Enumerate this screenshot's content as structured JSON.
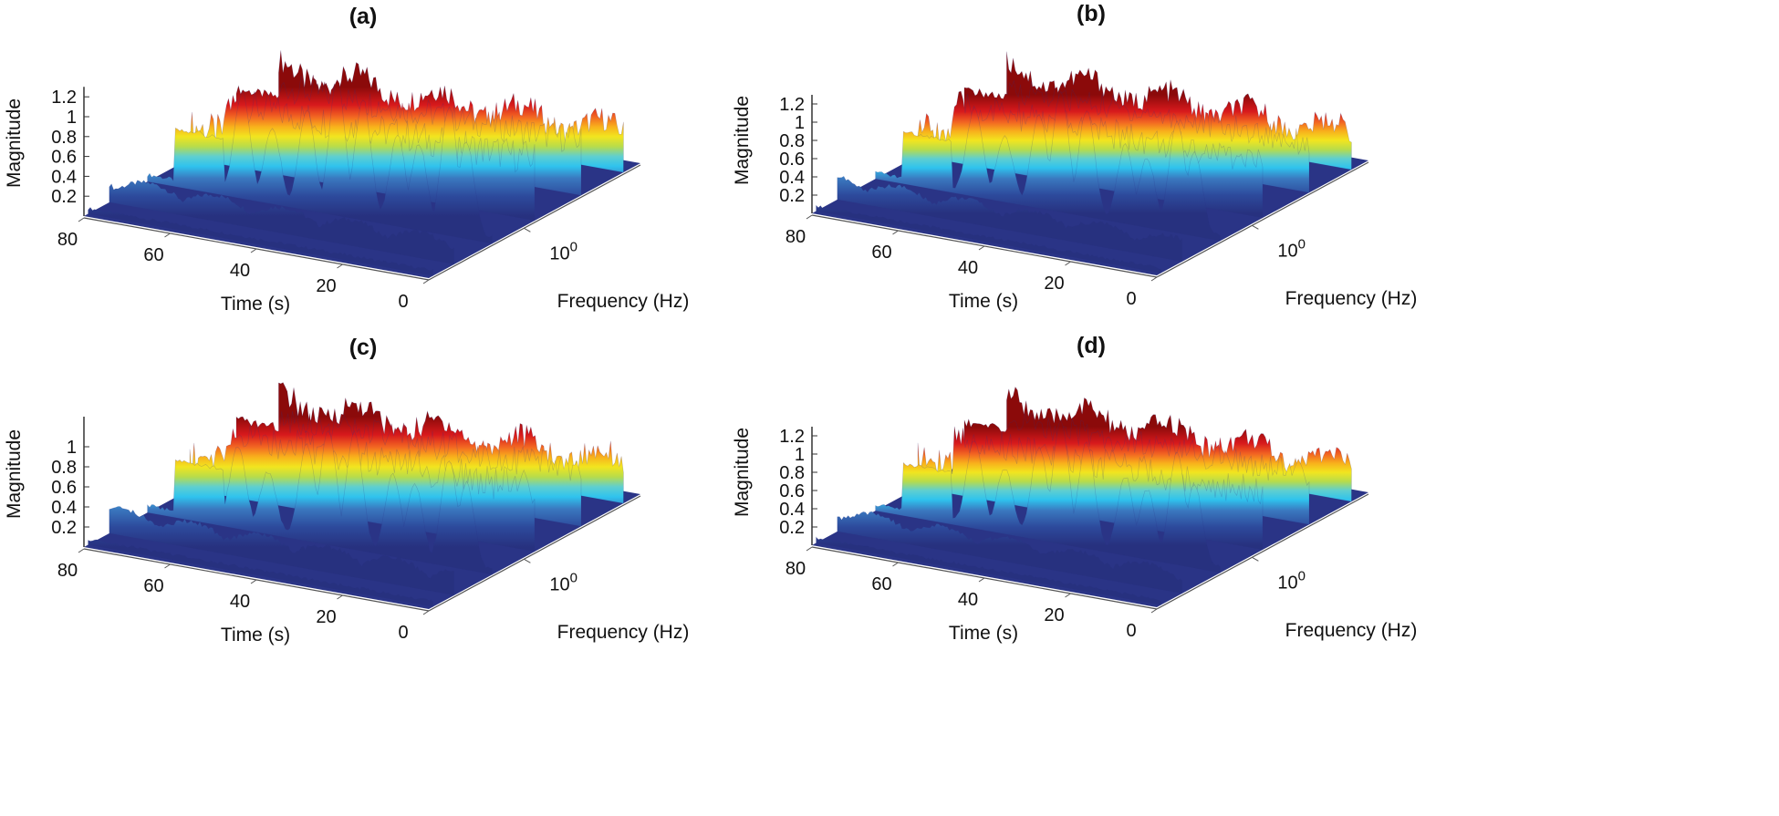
{
  "chart_data": [
    {
      "type": "surface",
      "title": "(a)",
      "xlabel": "Time (s)",
      "ylabel": "Frequency (Hz)",
      "zlabel": "Magnitude",
      "x_ticks": [
        "80",
        "60",
        "40",
        "20",
        "0"
      ],
      "y_ticks": [
        "10^0"
      ],
      "y_scale": "log",
      "z_ticks": [
        "0.2",
        "0.4",
        "0.6",
        "0.8",
        "1",
        "1.2"
      ],
      "xlim": [
        0,
        80
      ],
      "zlim": [
        0,
        1.3
      ],
      "colormap": "jet",
      "ridge_peaks": [
        {
          "time": 68,
          "magnitude": 0.6
        },
        {
          "time": 58,
          "magnitude": 1.05
        },
        {
          "time": 51,
          "magnitude": 0.75
        },
        {
          "time": 43,
          "magnitude": 1.0
        },
        {
          "time": 36,
          "magnitude": 1.35
        },
        {
          "time": 30,
          "magnitude": 1.2
        },
        {
          "time": 22,
          "magnitude": 0.9
        },
        {
          "time": 17,
          "magnitude": 0.85
        },
        {
          "time": 10,
          "magnitude": 1.28
        },
        {
          "time": 6,
          "magnitude": 0.95
        }
      ]
    },
    {
      "type": "surface",
      "title": "(b)",
      "xlabel": "Time (s)",
      "ylabel": "Frequency (Hz)",
      "zlabel": "Magnitude",
      "x_ticks": [
        "80",
        "60",
        "40",
        "20",
        "0"
      ],
      "y_ticks": [
        "10^0"
      ],
      "y_scale": "log",
      "z_ticks": [
        "0.2",
        "0.4",
        "0.6",
        "0.8",
        "1",
        "1.2"
      ],
      "xlim": [
        0,
        80
      ],
      "zlim": [
        0,
        1.3
      ],
      "colormap": "jet",
      "ridge_peaks": [
        {
          "time": 66,
          "magnitude": 0.55
        },
        {
          "time": 57,
          "magnitude": 0.95
        },
        {
          "time": 50,
          "magnitude": 0.7
        },
        {
          "time": 42,
          "magnitude": 1.0
        },
        {
          "time": 37,
          "magnitude": 1.3
        },
        {
          "time": 31,
          "magnitude": 1.15
        },
        {
          "time": 22,
          "magnitude": 0.85
        },
        {
          "time": 17,
          "magnitude": 0.75
        },
        {
          "time": 10,
          "magnitude": 1.2
        },
        {
          "time": 6,
          "magnitude": 0.9
        }
      ]
    },
    {
      "type": "surface",
      "title": "(c)",
      "xlabel": "Time (s)",
      "ylabel": "Frequency (Hz)",
      "zlabel": "Magnitude",
      "x_ticks": [
        "80",
        "60",
        "40",
        "20",
        "0"
      ],
      "y_ticks": [
        "10^0"
      ],
      "y_scale": "log",
      "z_ticks": [
        "0.2",
        "0.4",
        "0.6",
        "0.8",
        "1"
      ],
      "xlim": [
        0,
        80
      ],
      "zlim": [
        0,
        1.2
      ],
      "colormap": "jet",
      "ridge_peaks": [
        {
          "time": 66,
          "magnitude": 0.5
        },
        {
          "time": 59,
          "magnitude": 0.8
        },
        {
          "time": 52,
          "magnitude": 0.6
        },
        {
          "time": 43,
          "magnitude": 0.95
        },
        {
          "time": 38,
          "magnitude": 1.12
        },
        {
          "time": 32,
          "magnitude": 1.15
        },
        {
          "time": 23,
          "magnitude": 0.8
        },
        {
          "time": 18,
          "magnitude": 0.75
        },
        {
          "time": 10,
          "magnitude": 1.05
        },
        {
          "time": 6,
          "magnitude": 0.85
        }
      ]
    },
    {
      "type": "surface",
      "title": "(d)",
      "xlabel": "Time (s)",
      "ylabel": "Frequency (Hz)",
      "zlabel": "Magnitude",
      "x_ticks": [
        "80",
        "60",
        "40",
        "20",
        "0"
      ],
      "y_ticks": [
        "10^0"
      ],
      "y_scale": "log",
      "z_ticks": [
        "0.2",
        "0.4",
        "0.6",
        "0.8",
        "1",
        "1.2"
      ],
      "xlim": [
        0,
        80
      ],
      "zlim": [
        0,
        1.3
      ],
      "colormap": "jet",
      "ridge_peaks": [
        {
          "time": 66,
          "magnitude": 0.55
        },
        {
          "time": 57,
          "magnitude": 0.95
        },
        {
          "time": 50,
          "magnitude": 0.7
        },
        {
          "time": 42,
          "magnitude": 1.0
        },
        {
          "time": 37,
          "magnitude": 1.33
        },
        {
          "time": 31,
          "magnitude": 1.15
        },
        {
          "time": 22,
          "magnitude": 0.85
        },
        {
          "time": 17,
          "magnitude": 0.75
        },
        {
          "time": 10,
          "magnitude": 1.22
        },
        {
          "time": 6,
          "magnitude": 0.9
        }
      ]
    }
  ]
}
